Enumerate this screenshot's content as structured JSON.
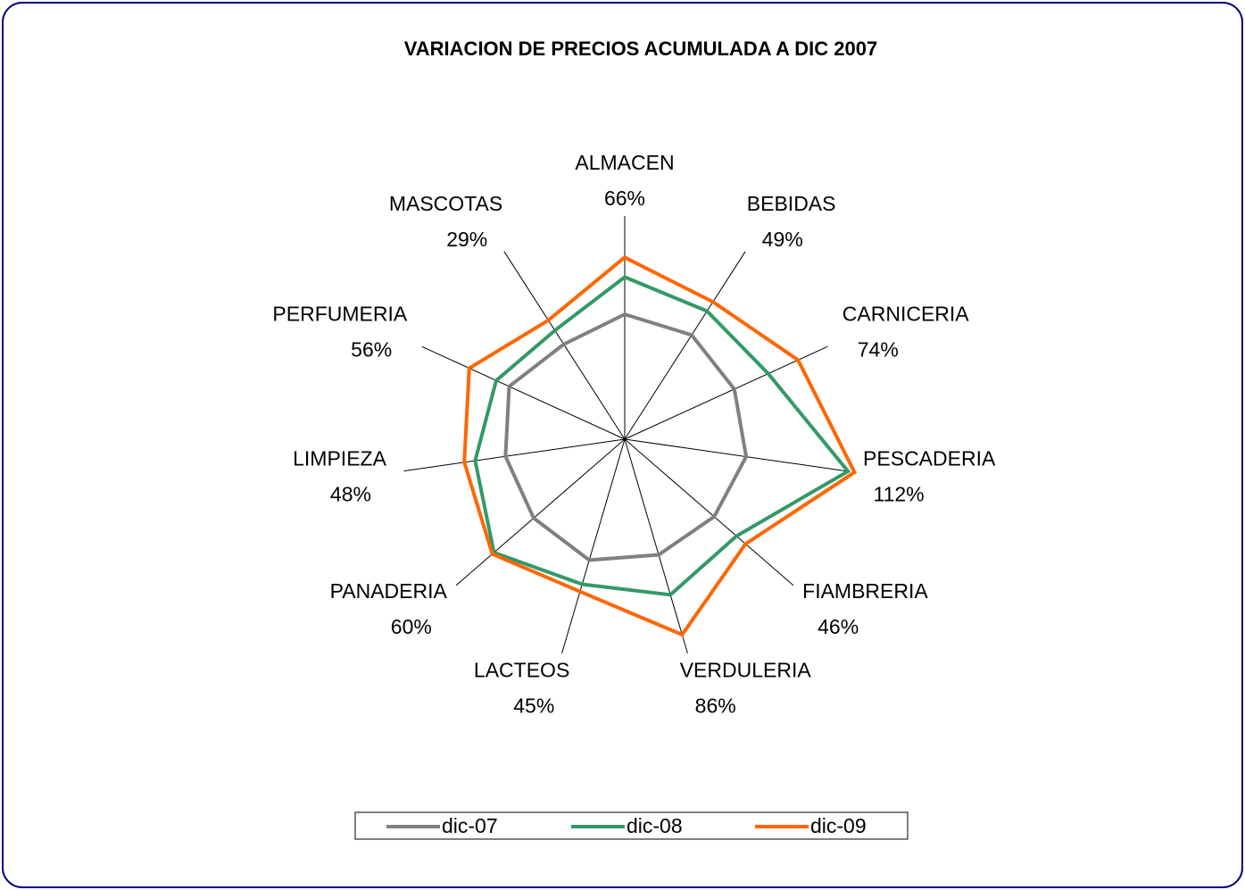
{
  "chart_data": {
    "type": "radar",
    "title": "VARIACION  DE PRECIOS ACUMULADA A DIC 2007",
    "categories": [
      "ALMACEN",
      "BEBIDAS",
      "CARNICERIA",
      "PESCADERIA",
      "FIAMBRERIA",
      "VERDULERIA",
      "LACTEOS",
      "PANADERIA",
      "LIMPIEZA",
      "PERFUMERIA",
      "MASCOTAS"
    ],
    "ylim": [
      -100,
      120
    ],
    "series": [
      {
        "name": "dic-07",
        "color": "#808080",
        "values": [
          14,
          13,
          10,
          12,
          8,
          10,
          15,
          10,
          10,
          16,
          3
        ]
      },
      {
        "name": "dic-08",
        "color": "#339966",
        "values": [
          48,
          39,
          44,
          106,
          35,
          48,
          38,
          58,
          38,
          29,
          18
        ]
      },
      {
        "name": "dic-09",
        "color": "#ff6600",
        "values": [
          66,
          49,
          74,
          112,
          46,
          86,
          45,
          60,
          48,
          56,
          29
        ],
        "value_labels": [
          "66%",
          "49%",
          "74%",
          "112%",
          "46%",
          "86%",
          "45%",
          "60%",
          "48%",
          "56%",
          "29%"
        ]
      }
    ],
    "legend": "bottom"
  }
}
